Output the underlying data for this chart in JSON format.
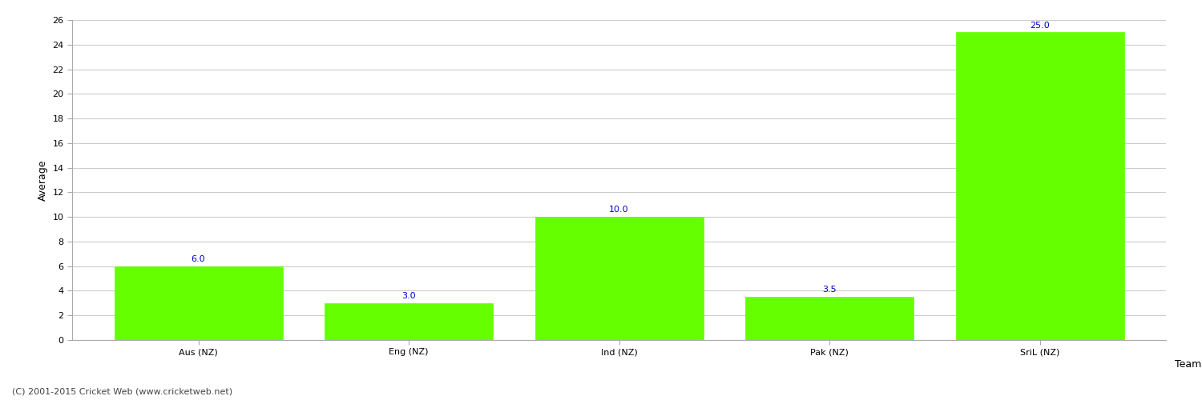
{
  "categories": [
    "Aus (NZ)",
    "Eng (NZ)",
    "Ind (NZ)",
    "Pak (NZ)",
    "SriL (NZ)"
  ],
  "values": [
    6.0,
    3.0,
    10.0,
    3.5,
    25.0
  ],
  "bar_color": "#66ff00",
  "bar_edge_color": "#66ff00",
  "xlabel": "Team",
  "ylabel": "Average",
  "ylim": [
    0,
    26
  ],
  "yticks": [
    0,
    2,
    4,
    6,
    8,
    10,
    12,
    14,
    16,
    18,
    20,
    22,
    24,
    26
  ],
  "label_color": "#0000cc",
  "label_fontsize": 8,
  "tick_fontsize": 8,
  "xlabel_fontsize": 9,
  "ylabel_fontsize": 9,
  "background_color": "#ffffff",
  "grid_color": "#cccccc",
  "footer_text": "(C) 2001-2015 Cricket Web (www.cricketweb.net)",
  "footer_fontsize": 8,
  "footer_color": "#444444",
  "bar_width": 0.8
}
